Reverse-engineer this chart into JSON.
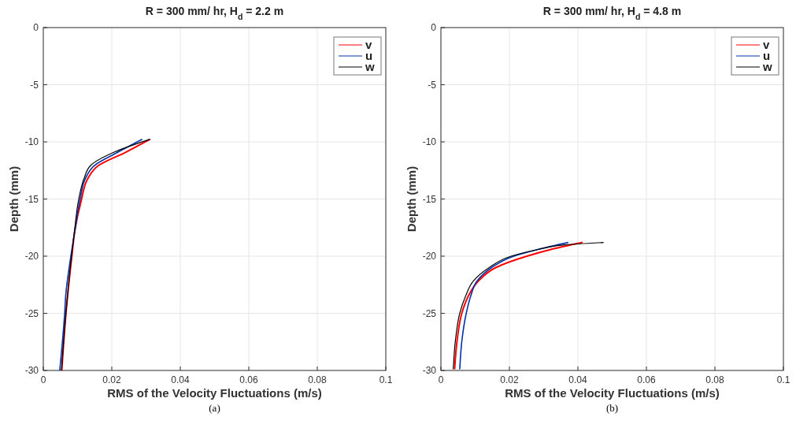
{
  "chart_data": [
    {
      "type": "line",
      "title": "R = 300 mm/ hr, H$_{d}$ = 2.2 m",
      "xlabel": "RMS of the Velocity Fluctuations (m/s)",
      "ylabel": "Depth (mm)",
      "annotations": [
        "(a)"
      ],
      "xlim": [
        0,
        0.1
      ],
      "xticks": [
        0,
        0.02,
        0.04,
        0.06,
        0.08,
        0.1
      ],
      "ylim": [
        -30,
        0
      ],
      "yticks": [
        -30,
        -25,
        -20,
        -15,
        -10,
        -5,
        0
      ],
      "grid": true,
      "legend": "top right",
      "series": [
        {
          "name": "v",
          "color": "#ff0000",
          "x": [
            0.0312,
            0.0241,
            0.0161,
            0.013,
            0.0111,
            0.0092,
            0.0083,
            0.0067,
            0.0054
          ],
          "values": [
            -9.77,
            -10.9,
            -12.07,
            -13.2,
            -15.1,
            -17.8,
            -20.1,
            -24.7,
            -30
          ]
        },
        {
          "name": "u",
          "color": "#0033aa",
          "x": [
            0.0289,
            0.0218,
            0.0149,
            0.0123,
            0.0107,
            0.0092,
            0.008,
            0.0065,
            0.0063,
            0.0048
          ],
          "values": [
            -9.77,
            -10.9,
            -12.07,
            -13.2,
            -15.1,
            -17.8,
            -20.1,
            -23.6,
            -24.7,
            -30
          ]
        },
        {
          "name": "w",
          "color": "#000000",
          "x": [
            0.0312,
            0.0207,
            0.0138,
            0.0119,
            0.0103,
            0.0091,
            0.0082,
            0.0067,
            0.0053
          ],
          "values": [
            -9.77,
            -10.9,
            -12.07,
            -13.2,
            -15.1,
            -17.8,
            -20.1,
            -24.7,
            -30
          ]
        }
      ]
    },
    {
      "type": "line",
      "title": "R = 300 mm/ hr, H$_{d}$ = 4.8 m",
      "xlabel": "RMS of the Velocity Fluctuations (m/s)",
      "ylabel": "Depth (mm)",
      "annotations": [
        "(b)"
      ],
      "xlim": [
        0,
        0.1
      ],
      "xticks": [
        0,
        0.02,
        0.04,
        0.06,
        0.08,
        0.1
      ],
      "ylim": [
        -30,
        0
      ],
      "yticks": [
        -30,
        -25,
        -20,
        -15,
        -10,
        -5,
        0
      ],
      "grid": true,
      "legend": "top right",
      "series": [
        {
          "name": "v",
          "color": "#ff0000",
          "x": [
            0.0414,
            0.0319,
            0.0251,
            0.016,
            0.011,
            0.008,
            0.0061,
            0.0048,
            0.004
          ],
          "values": [
            -18.8,
            -19.43,
            -20,
            -21,
            -22.16,
            -23.5,
            -25,
            -27.2,
            -29.9
          ]
        },
        {
          "name": "u",
          "color": "#0033aa",
          "x": [
            0.0372,
            0.0281,
            0.0213,
            0.0148,
            0.0106,
            0.0087,
            0.0074,
            0.0062,
            0.0055
          ],
          "values": [
            -18.8,
            -19.43,
            -20,
            -21,
            -22.16,
            -23.5,
            -25,
            -27.2,
            -29.9
          ]
        },
        {
          "name": "w",
          "color": "#000000",
          "x": [
            0.0475,
            0.0357,
            0.0281,
            0.0205,
            0.0141,
            0.0095,
            0.0072,
            0.0055,
            0.0043,
            0.0036
          ],
          "values": [
            -18.8,
            -19.02,
            -19.43,
            -20,
            -21,
            -22.16,
            -23.5,
            -25,
            -27.2,
            -29.9
          ]
        }
      ]
    }
  ]
}
